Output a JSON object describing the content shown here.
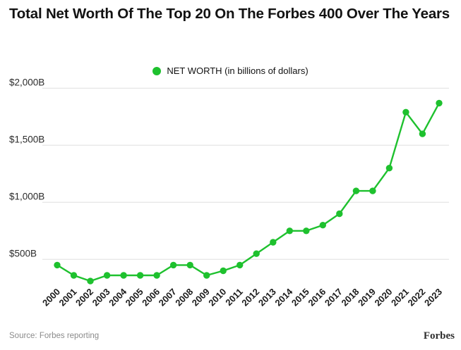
{
  "title": "Total Net Worth Of The Top 20 On The Forbes 400 Over The Years",
  "legend": {
    "label": "NET WORTH (in billions of dollars)",
    "marker_color": "#1ec12e"
  },
  "footer": {
    "source": "Source: Forbes reporting",
    "brand": "Forbes"
  },
  "chart_data": {
    "type": "line",
    "title": "Total Net Worth Of The Top 20 On The Forbes 400 Over The Years",
    "series_name": "NET WORTH (in billions of dollars)",
    "categories": [
      "2000",
      "2001",
      "2002",
      "2003",
      "2004",
      "2005",
      "2006",
      "2007",
      "2008",
      "2009",
      "2010",
      "2011",
      "2012",
      "2013",
      "2014",
      "2015",
      "2016",
      "2017",
      "2018",
      "2019",
      "2020",
      "2021",
      "2022",
      "2023"
    ],
    "values": [
      450,
      360,
      310,
      360,
      360,
      360,
      360,
      450,
      450,
      360,
      400,
      450,
      550,
      650,
      750,
      750,
      800,
      900,
      1100,
      1100,
      1300,
      1790,
      1600,
      1870
    ],
    "unit": "billions of dollars",
    "xlabel": "",
    "ylabel": "Net worth (in billions of dollars)",
    "ytick_values": [
      500,
      1000,
      1500,
      2000
    ],
    "ytick_labels": [
      "$500B",
      "$1,000B",
      "$1,500B",
      "$2,000B"
    ],
    "ylim": [
      250,
      2050
    ],
    "grid": true,
    "grid_color": "#e8e8e8",
    "legend_position": "top-center",
    "line_color": "#1ec12e",
    "marker": "circle"
  }
}
